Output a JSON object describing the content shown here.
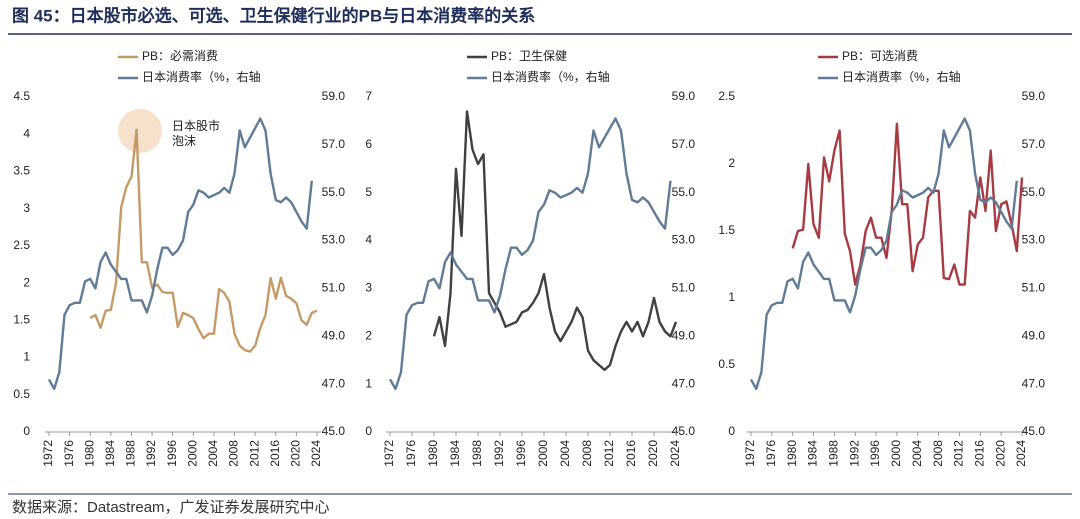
{
  "title": "图 45：日本股市必选、可选、卫生保健行业的PB与日本消费率的关系",
  "source": "数据来源：Datastream，广发证券发展研究中心",
  "chart_data": [
    {
      "type": "line",
      "annotation": [
        "日本股市",
        "泡沫"
      ],
      "x": [
        1972,
        1973,
        1974,
        1975,
        1976,
        1977,
        1978,
        1979,
        1980,
        1981,
        1982,
        1983,
        1984,
        1985,
        1986,
        1987,
        1988,
        1989,
        1990,
        1991,
        1992,
        1993,
        1994,
        1995,
        1996,
        1997,
        1998,
        1999,
        2000,
        2001,
        2002,
        2003,
        2004,
        2005,
        2006,
        2007,
        2008,
        2009,
        2010,
        2011,
        2012,
        2013,
        2014,
        2015,
        2016,
        2017,
        2018,
        2019,
        2020,
        2021,
        2022,
        2023,
        2024
      ],
      "xlim": [
        1972,
        2024
      ],
      "xticks": [
        1972,
        1976,
        1980,
        1984,
        1988,
        1992,
        1996,
        2000,
        2004,
        2008,
        2012,
        2016,
        2020,
        2024
      ],
      "ylim": [
        0,
        4.5
      ],
      "yticks": [
        0,
        0.5,
        1,
        1.5,
        2,
        2.5,
        3,
        3.5,
        4,
        4.5
      ],
      "y2lim": [
        45,
        59
      ],
      "y2ticks": [
        {
          "value": 45,
          "label": "45.0"
        },
        {
          "value": 47,
          "label": "47.0"
        },
        {
          "value": 49,
          "label": "49.0"
        },
        {
          "value": 51,
          "label": "51.0"
        },
        {
          "value": 53,
          "label": "53.0"
        },
        {
          "value": 55,
          "label": "55.0"
        },
        {
          "value": 57,
          "label": "57.0"
        },
        {
          "value": 59,
          "label": "59.0"
        }
      ],
      "series": [
        {
          "name": "PB：必需消费",
          "color": "#c49a66",
          "values": [
            null,
            null,
            null,
            null,
            null,
            null,
            null,
            null,
            1.53,
            1.57,
            1.4,
            1.63,
            1.64,
            2.0,
            3.02,
            3.29,
            3.43,
            4.06,
            2.28,
            2.28,
            1.94,
            1.98,
            1.88,
            1.87,
            1.87,
            1.41,
            1.6,
            1.57,
            1.53,
            1.38,
            1.26,
            1.32,
            1.32,
            1.92,
            1.87,
            1.75,
            1.32,
            1.16,
            1.1,
            1.08,
            1.16,
            1.4,
            1.57,
            2.07,
            1.79,
            2.07,
            1.83,
            1.79,
            1.73,
            1.5,
            1.44,
            1.6,
            1.63
          ]
        },
        {
          "name": "日本消费率（%，右轴",
          "color": "#5f7b95",
          "axis": "y2",
          "values": [
            47.2,
            46.8,
            47.5,
            49.9,
            50.3,
            50.4,
            50.4,
            51.3,
            51.4,
            51.0,
            52.1,
            52.5,
            52.0,
            51.7,
            51.4,
            51.4,
            50.5,
            50.5,
            50.5,
            50.0,
            50.7,
            51.8,
            52.7,
            52.7,
            52.4,
            52.6,
            53.0,
            54.2,
            54.5,
            55.1,
            55.0,
            54.8,
            54.9,
            55.0,
            55.2,
            55.0,
            55.8,
            57.6,
            56.9,
            57.3,
            57.7,
            58.1,
            57.6,
            55.8,
            54.7,
            54.6,
            54.8,
            54.6,
            54.2,
            53.8,
            53.5,
            55.5,
            null
          ]
        }
      ]
    },
    {
      "type": "line",
      "x": [
        1972,
        1973,
        1974,
        1975,
        1976,
        1977,
        1978,
        1979,
        1980,
        1981,
        1982,
        1983,
        1984,
        1985,
        1986,
        1987,
        1988,
        1989,
        1990,
        1991,
        1992,
        1993,
        1994,
        1995,
        1996,
        1997,
        1998,
        1999,
        2000,
        2001,
        2002,
        2003,
        2004,
        2005,
        2006,
        2007,
        2008,
        2009,
        2010,
        2011,
        2012,
        2013,
        2014,
        2015,
        2016,
        2017,
        2018,
        2019,
        2020,
        2021,
        2022,
        2023,
        2024
      ],
      "xlim": [
        1972,
        2024
      ],
      "xticks": [
        1972,
        1976,
        1980,
        1984,
        1988,
        1992,
        1996,
        2000,
        2004,
        2008,
        2012,
        2016,
        2020,
        2024
      ],
      "ylim": [
        0,
        7
      ],
      "yticks": [
        0,
        1,
        2,
        3,
        4,
        5,
        6,
        7
      ],
      "y2lim": [
        45,
        59
      ],
      "y2ticks": [
        {
          "value": 45,
          "label": "45.0"
        },
        {
          "value": 47,
          "label": "47.0"
        },
        {
          "value": 49,
          "label": "49.0"
        },
        {
          "value": 51,
          "label": "51.0"
        },
        {
          "value": 53,
          "label": "53.0"
        },
        {
          "value": 55,
          "label": "55.0"
        },
        {
          "value": 57,
          "label": "57.0"
        },
        {
          "value": 59,
          "label": "59.0"
        }
      ],
      "series": [
        {
          "name": "PB：卫生保健",
          "color": "#404040",
          "values": [
            null,
            null,
            null,
            null,
            null,
            null,
            null,
            null,
            2.0,
            2.4,
            1.8,
            2.9,
            5.5,
            4.1,
            6.7,
            5.9,
            5.6,
            5.8,
            2.9,
            2.7,
            2.5,
            2.2,
            2.25,
            2.3,
            2.5,
            2.55,
            2.7,
            2.9,
            3.3,
            2.6,
            2.1,
            1.9,
            2.1,
            2.3,
            2.6,
            2.4,
            1.7,
            1.5,
            1.4,
            1.3,
            1.4,
            1.8,
            2.1,
            2.3,
            2.1,
            2.3,
            2.0,
            2.3,
            2.8,
            2.3,
            2.1,
            2.0,
            2.3
          ]
        },
        {
          "name": "日本消费率（%，右轴",
          "color": "#5f7b95",
          "axis": "y2",
          "values": [
            47.2,
            46.8,
            47.5,
            49.9,
            50.3,
            50.4,
            50.4,
            51.3,
            51.4,
            51.0,
            52.1,
            52.5,
            52.0,
            51.7,
            51.4,
            51.4,
            50.5,
            50.5,
            50.5,
            50.0,
            50.7,
            51.8,
            52.7,
            52.7,
            52.4,
            52.6,
            53.0,
            54.2,
            54.5,
            55.1,
            55.0,
            54.8,
            54.9,
            55.0,
            55.2,
            55.0,
            55.8,
            57.6,
            56.9,
            57.3,
            57.7,
            58.1,
            57.6,
            55.8,
            54.7,
            54.6,
            54.8,
            54.6,
            54.2,
            53.8,
            53.5,
            55.5,
            null
          ]
        }
      ]
    },
    {
      "type": "line",
      "x": [
        1972,
        1973,
        1974,
        1975,
        1976,
        1977,
        1978,
        1979,
        1980,
        1981,
        1982,
        1983,
        1984,
        1985,
        1986,
        1987,
        1988,
        1989,
        1990,
        1991,
        1992,
        1993,
        1994,
        1995,
        1996,
        1997,
        1998,
        1999,
        2000,
        2001,
        2002,
        2003,
        2004,
        2005,
        2006,
        2007,
        2008,
        2009,
        2010,
        2011,
        2012,
        2013,
        2014,
        2015,
        2016,
        2017,
        2018,
        2019,
        2020,
        2021,
        2022,
        2023,
        2024
      ],
      "xlim": [
        1972,
        2024
      ],
      "xticks": [
        1972,
        1976,
        1980,
        1984,
        1988,
        1992,
        1996,
        2000,
        2004,
        2008,
        2012,
        2016,
        2020,
        2024
      ],
      "ylim": [
        0,
        2.5
      ],
      "yticks": [
        0,
        0.5,
        1,
        1.5,
        2,
        2.5
      ],
      "y2lim": [
        45,
        59
      ],
      "y2ticks": [
        {
          "value": 45,
          "label": "45.0"
        },
        {
          "value": 47,
          "label": "47.0"
        },
        {
          "value": 49,
          "label": "49.0"
        },
        {
          "value": 51,
          "label": "51.0"
        },
        {
          "value": 53,
          "label": "53.0"
        },
        {
          "value": 55,
          "label": "55.0"
        },
        {
          "value": 57,
          "label": "57.0"
        },
        {
          "value": 59,
          "label": "59.0"
        }
      ],
      "series": [
        {
          "name": "PB：可选消费",
          "color": "#a83a43",
          "values": [
            null,
            null,
            null,
            null,
            null,
            null,
            null,
            null,
            1.37,
            1.5,
            1.51,
            2.0,
            1.55,
            1.45,
            2.05,
            1.87,
            2.1,
            2.25,
            1.48,
            1.35,
            1.1,
            1.25,
            1.5,
            1.6,
            1.45,
            1.45,
            1.3,
            1.65,
            2.3,
            1.7,
            1.7,
            1.2,
            1.4,
            1.45,
            1.75,
            1.8,
            1.8,
            1.15,
            1.14,
            1.25,
            1.1,
            1.1,
            1.65,
            1.6,
            1.9,
            1.65,
            2.1,
            1.5,
            1.7,
            1.72,
            1.55,
            1.35,
            1.9
          ]
        },
        {
          "name": "日本消费率（%，右轴",
          "color": "#5f7b95",
          "axis": "y2",
          "values": [
            47.2,
            46.8,
            47.5,
            49.9,
            50.3,
            50.4,
            50.4,
            51.3,
            51.4,
            51.0,
            52.1,
            52.5,
            52.0,
            51.7,
            51.4,
            51.4,
            50.5,
            50.5,
            50.5,
            50.0,
            50.7,
            51.8,
            52.7,
            52.7,
            52.4,
            52.6,
            53.0,
            54.2,
            54.5,
            55.1,
            55.0,
            54.8,
            54.9,
            55.0,
            55.2,
            55.0,
            55.8,
            57.6,
            56.9,
            57.3,
            57.7,
            58.1,
            57.6,
            55.8,
            54.7,
            54.6,
            54.8,
            54.6,
            54.2,
            53.8,
            53.5,
            55.5,
            null
          ]
        }
      ]
    }
  ]
}
